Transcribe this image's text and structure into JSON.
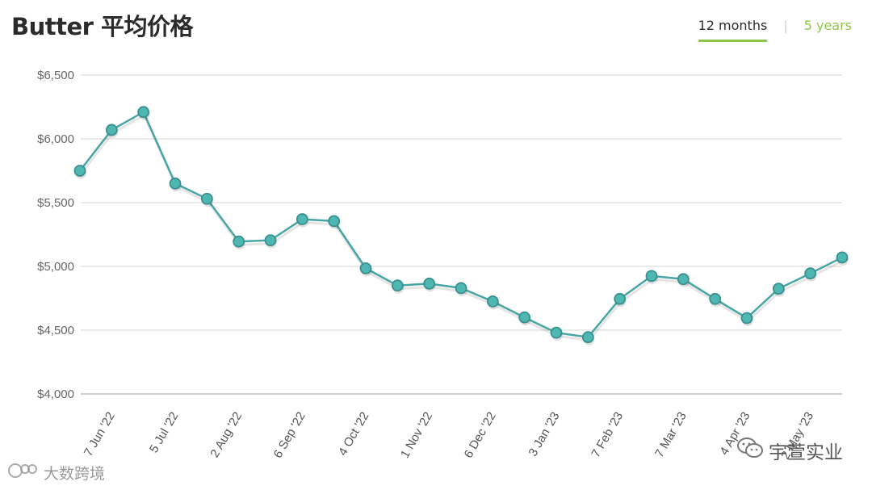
{
  "title": "Butter 平均价格",
  "tabs": [
    {
      "label": "12 months",
      "active": true
    },
    {
      "label": "5 years",
      "active": false
    }
  ],
  "tab_separator": "|",
  "colors": {
    "line": "#48a5a5",
    "point_fill": "#4fb7b2",
    "accent_green": "#8dc64b",
    "grid": "#e3e3e3"
  },
  "chart_data": {
    "type": "line",
    "title": "Butter 平均价格",
    "y_tick_labels": [
      "$4,000",
      "$4,500",
      "$5,000",
      "$5,500",
      "$6,000",
      "$6,500"
    ],
    "y_ticks": [
      4000,
      4500,
      5000,
      5500,
      6000,
      6500
    ],
    "ylim": [
      4000,
      6500
    ],
    "x_tick_labels": [
      "7 Jun '22",
      "5 Jul '22",
      "2 Aug '22",
      "6 Sep '22",
      "4 Oct '22",
      "1 Nov '22",
      "6 Dec '22",
      "3 Jan '23",
      "7 Feb '23",
      "7 Mar '23",
      "4 Apr '23",
      "2 May '23"
    ],
    "x_tick_point_index": [
      1,
      3,
      5,
      7,
      9,
      11,
      13,
      15,
      17,
      19,
      21,
      23
    ],
    "grid": true,
    "series": [
      {
        "values": [
          5750,
          6070,
          6210,
          5650,
          5530,
          5195,
          5205,
          5370,
          5355,
          4985,
          4850,
          4865,
          4830,
          4725,
          4600,
          4480,
          4445,
          4745,
          4925,
          4900,
          4745,
          4595,
          4825,
          4945,
          5070
        ]
      }
    ]
  },
  "watermarks": {
    "left": "大数跨境",
    "right": "宇萱实业"
  }
}
